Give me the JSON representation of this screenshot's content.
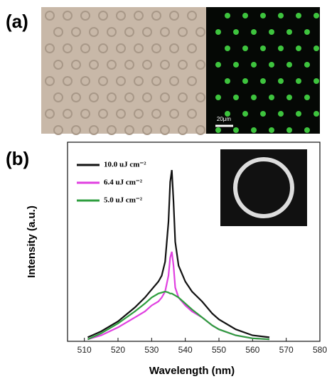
{
  "panel_a": {
    "label": "(a)",
    "scale_bar": "20μm"
  },
  "chart_data": {
    "type": "line",
    "panel_label": "(b)",
    "x_label": "Wavelength (nm)",
    "y_label": "Intensity (a.u.)",
    "x": [
      511,
      515,
      520,
      525,
      528,
      530,
      532,
      533,
      534,
      535,
      535.5,
      536,
      536.5,
      537,
      538,
      540,
      542,
      545,
      548,
      550,
      555,
      560,
      565
    ],
    "series": [
      {
        "name": "10.0 uJ cm⁻²",
        "color": "#111111",
        "values": [
          0.02,
          0.05,
          0.1,
          0.17,
          0.22,
          0.26,
          0.3,
          0.33,
          0.4,
          0.6,
          0.8,
          0.86,
          0.7,
          0.5,
          0.38,
          0.3,
          0.25,
          0.2,
          0.14,
          0.11,
          0.06,
          0.03,
          0.02
        ]
      },
      {
        "name": "6.4 uJ cm⁻²",
        "color": "#e040e0",
        "values": [
          0.01,
          0.03,
          0.07,
          0.12,
          0.15,
          0.18,
          0.2,
          0.22,
          0.25,
          0.33,
          0.42,
          0.45,
          0.38,
          0.27,
          0.22,
          0.18,
          0.15,
          0.12,
          0.08,
          0.06,
          0.03,
          0.015,
          0.01
        ]
      },
      {
        "name": "5.0 uJ cm⁻²",
        "color": "#2e9e3e",
        "values": [
          0.01,
          0.04,
          0.09,
          0.15,
          0.19,
          0.22,
          0.24,
          0.245,
          0.25,
          0.245,
          0.24,
          0.24,
          0.235,
          0.23,
          0.22,
          0.19,
          0.16,
          0.12,
          0.08,
          0.06,
          0.03,
          0.015,
          0.01
        ]
      }
    ],
    "xlim": [
      505,
      580
    ],
    "xticks": [
      510,
      520,
      530,
      540,
      550,
      560,
      570,
      580
    ],
    "ylim": [
      0,
      1
    ]
  }
}
